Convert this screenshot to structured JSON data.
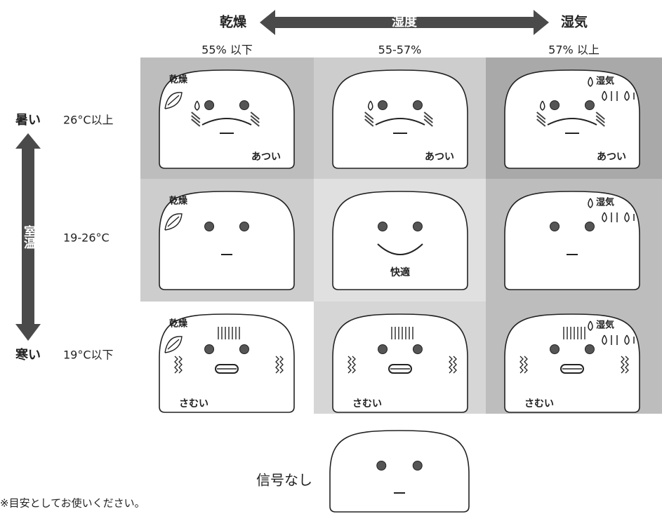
{
  "humidity_axis": {
    "low": "乾燥",
    "label": "湿度",
    "high": "湿気"
  },
  "temperature_axis": {
    "high": "暑い",
    "label": "室温",
    "low": "寒い"
  },
  "columns": [
    "55% 以下",
    "55-57%",
    "57% 以上"
  ],
  "rows": [
    {
      "label": "26°C以上",
      "cells": [
        {
          "tag": "乾燥",
          "caption": "あつい"
        },
        {
          "caption": "あつい"
        },
        {
          "tag": "湿気",
          "caption": "あつい"
        }
      ]
    },
    {
      "label": "19-26°C",
      "cells": [
        {
          "tag": "乾燥"
        },
        {
          "caption": "快適"
        },
        {
          "tag": "湿気"
        }
      ]
    },
    {
      "label": "19°C以下",
      "cells": [
        {
          "tag": "乾燥",
          "caption": "さむい"
        },
        {
          "caption": "さむい"
        },
        {
          "tag": "湿気",
          "caption": "さむい"
        }
      ]
    }
  ],
  "no_signal": "信号なし",
  "note": "※目安としてお使いください。"
}
